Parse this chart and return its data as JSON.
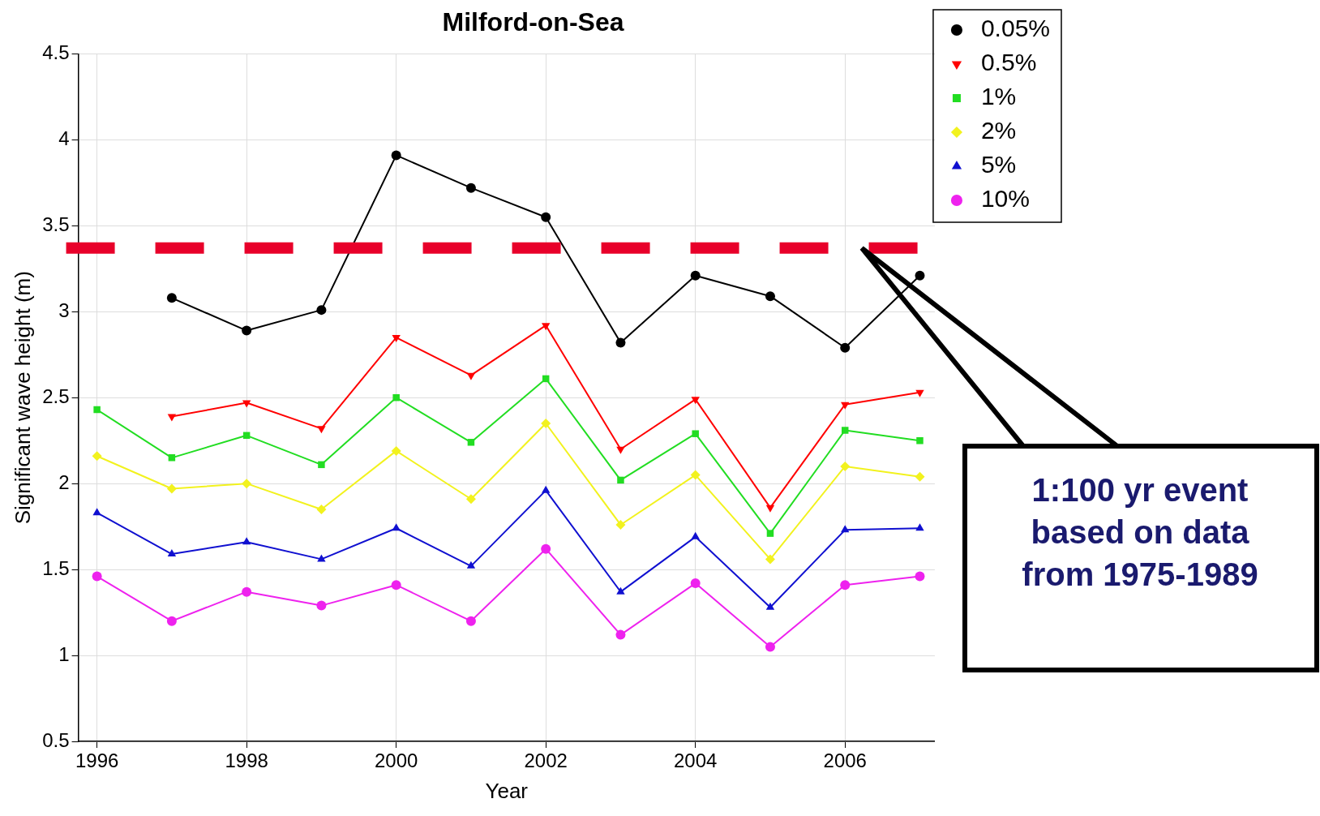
{
  "chart_data": {
    "type": "line",
    "title": "Milford-on-Sea",
    "xlabel": "Year",
    "ylabel": "Significant wave height (m)",
    "x": [
      1996,
      1997,
      1998,
      1999,
      2000,
      2001,
      2002,
      2003,
      2004,
      2005,
      2006,
      2007
    ],
    "xlim": [
      1995.75,
      2007.2
    ],
    "xticks": [
      1996,
      1998,
      2000,
      2002,
      2004,
      2006
    ],
    "ylim": [
      0.5,
      4.5
    ],
    "yticks": [
      0.5,
      1.0,
      1.5,
      2.0,
      2.5,
      3.0,
      3.5,
      4.0,
      4.5
    ],
    "grid": true,
    "legend": "top right",
    "line_style": "solid",
    "series": [
      {
        "name": "0.05%",
        "color": "#000000",
        "marker": "circle",
        "values": [
          null,
          3.08,
          2.89,
          3.01,
          3.91,
          3.72,
          3.55,
          2.82,
          3.21,
          3.09,
          2.79,
          3.21
        ]
      },
      {
        "name": "0.5%",
        "color": "#ff0000",
        "marker": "triangle-down",
        "values": [
          null,
          2.39,
          2.47,
          2.32,
          2.85,
          2.63,
          2.92,
          2.2,
          2.49,
          1.86,
          2.46,
          2.53
        ]
      },
      {
        "name": "1%",
        "color": "#22dd22",
        "marker": "square",
        "values": [
          2.43,
          2.15,
          2.28,
          2.11,
          2.5,
          2.24,
          2.61,
          2.02,
          2.29,
          1.71,
          2.31,
          2.25
        ]
      },
      {
        "name": "2%",
        "color": "#f2f21e",
        "marker": "diamond",
        "values": [
          2.16,
          1.97,
          2.0,
          1.85,
          2.19,
          1.91,
          2.35,
          1.76,
          2.05,
          1.56,
          2.1,
          2.04
        ]
      },
      {
        "name": "5%",
        "color": "#1010d0",
        "marker": "triangle",
        "values": [
          1.83,
          1.59,
          1.66,
          1.56,
          1.74,
          1.52,
          1.96,
          1.37,
          1.69,
          1.28,
          1.73,
          1.74
        ]
      },
      {
        "name": "10%",
        "color": "#ee22ee",
        "marker": "circle",
        "values": [
          1.46,
          1.2,
          1.37,
          1.29,
          1.41,
          1.2,
          1.62,
          1.12,
          1.42,
          1.05,
          1.41,
          1.46
        ]
      }
    ],
    "ref_lines": [
      {
        "axis": "y",
        "value": 3.37,
        "color": "#e8002a",
        "line_style": "dashed"
      }
    ],
    "annotations": [
      "1:100 yr event based on data from 1975-1989"
    ]
  }
}
